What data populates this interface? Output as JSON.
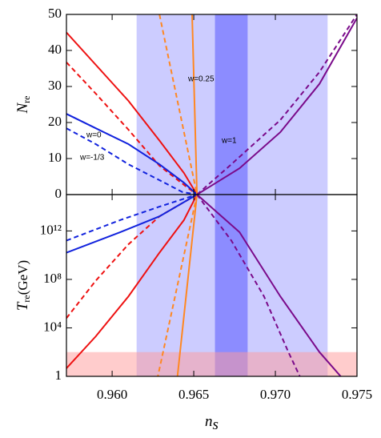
{
  "chart_data": [
    {
      "type": "line",
      "ylabel": [
        "N",
        "re"
      ],
      "xlim": [
        0.9572,
        0.975
      ],
      "xticks": [
        0.96,
        0.965,
        0.97,
        0.975
      ],
      "ylim": [
        0,
        50
      ],
      "yticks": [
        0,
        10,
        20,
        30,
        40,
        50
      ],
      "bands": [
        {
          "x": [
            0.9615,
            0.9732
          ],
          "color": "#ccccff"
        },
        {
          "x": [
            0.9663,
            0.9683
          ],
          "color": "#8c8cff"
        }
      ],
      "annotations": [
        "w=0",
        "w=-1/3",
        "w=0.25",
        "w=1"
      ],
      "series": [
        {
          "color": "#ee1111",
          "dash": false,
          "x": [
            0.9572,
            0.959,
            0.961,
            0.9629,
            0.9644,
            0.9652
          ],
          "values": [
            45,
            36,
            26,
            15,
            6,
            0
          ]
        },
        {
          "color": "#ee1111",
          "dash": true,
          "x": [
            0.9572,
            0.959,
            0.961,
            0.9629,
            0.9646,
            0.9652
          ],
          "values": [
            36.7,
            28,
            18,
            8,
            2,
            0
          ]
        },
        {
          "color": "#1122dd",
          "dash": false,
          "x": [
            0.9572,
            0.959,
            0.961,
            0.9629,
            0.9644,
            0.9652
          ],
          "values": [
            22.4,
            18.4,
            14,
            8.4,
            3.3,
            0
          ]
        },
        {
          "color": "#1122dd",
          "dash": true,
          "x": [
            0.9572,
            0.959,
            0.961,
            0.9629,
            0.9643,
            0.9652
          ],
          "values": [
            18.4,
            14,
            8.4,
            4,
            0.7,
            0
          ]
        },
        {
          "color": "#ff8822",
          "dash": false,
          "x": [
            0.9649,
            0.9652
          ],
          "values": [
            50,
            0
          ]
        },
        {
          "color": "#ff8822",
          "dash": true,
          "x": [
            0.9629,
            0.9652
          ],
          "values": [
            50,
            0
          ]
        },
        {
          "color": "#7a0a8a",
          "dash": false,
          "x": [
            0.9652,
            0.9678,
            0.9703,
            0.9727,
            0.975
          ],
          "values": [
            0,
            7.3,
            17.3,
            30.7,
            49
          ]
        },
        {
          "color": "#7a0a8a",
          "dash": true,
          "x": [
            0.9652,
            0.9673,
            0.9703,
            0.9727,
            0.975
          ],
          "values": [
            0,
            8.4,
            20.7,
            34,
            50
          ]
        }
      ]
    },
    {
      "type": "line",
      "ylabel": [
        "T",
        "re",
        "(GeV)"
      ],
      "xlabel": [
        "n",
        "s"
      ],
      "xlim": [
        0.9572,
        0.975
      ],
      "xticks": [
        {
          "value": 0.96,
          "label": "0.960"
        },
        {
          "value": 0.965,
          "label": "0.965"
        },
        {
          "value": 0.97,
          "label": "0.970"
        },
        {
          "value": 0.975,
          "label": "0.975"
        }
      ],
      "ylim": [
        1,
        1000000000000000.0
      ],
      "log_y": true,
      "yticks": [
        1,
        {
          "value": 10000,
          "label": "10⁴"
        },
        {
          "value": 100000000,
          "label": "10⁸"
        },
        {
          "value": 1000000000000,
          "label": "10¹²"
        }
      ],
      "bands": [
        {
          "x": [
            0.9615,
            0.9732
          ],
          "color": "#ccccff"
        },
        {
          "x": [
            0.9663,
            0.9683
          ],
          "color": "#8c8cff"
        }
      ],
      "hbands": [
        {
          "y": [
            1,
            100
          ],
          "color": "#ff9999"
        }
      ],
      "series": [
        {
          "color": "#ee1111",
          "dash": false,
          "x": [
            0.9572,
            0.959,
            0.961,
            0.9629,
            0.9644,
            0.9652
          ],
          "values": [
            4.6,
            2000,
            4000000,
            16000000000,
            7900000000000,
            1000000000000000.0
          ]
        },
        {
          "color": "#ee1111",
          "dash": true,
          "x": [
            0.9572,
            0.959,
            0.961,
            0.9629,
            0.9652
          ],
          "values": [
            63000,
            79000000,
            79000000000,
            16000000000000,
            1000000000000000.0
          ]
        },
        {
          "color": "#1122dd",
          "dash": false,
          "x": [
            0.9572,
            0.9605,
            0.9629,
            0.9652
          ],
          "values": [
            16000000000,
            790000000000,
            16000000000000,
            1000000000000000.0
          ]
        },
        {
          "color": "#1122dd",
          "dash": true,
          "x": [
            0.9572,
            0.9605,
            0.9629,
            0.9652
          ],
          "values": [
            160000000000,
            7900000000000,
            100000000000000,
            1000000000000000.0
          ]
        },
        {
          "color": "#ff8822",
          "dash": false,
          "x": [
            0.9652,
            0.964
          ],
          "values": [
            1000000000000000.0,
            1
          ]
        },
        {
          "color": "#ff8822",
          "dash": true,
          "x": [
            0.9652,
            0.9628
          ],
          "values": [
            1000000000000000.0,
            1
          ]
        },
        {
          "color": "#7a0a8a",
          "dash": false,
          "x": [
            0.9652,
            0.9678,
            0.9703,
            0.9727,
            0.974
          ],
          "values": [
            1000000000000000.0,
            790000000000,
            4000000,
            100,
            1
          ]
        },
        {
          "color": "#7a0a8a",
          "dash": true,
          "x": [
            0.9652,
            0.9673,
            0.9693,
            0.9708,
            0.9715
          ],
          "values": [
            1000000000000000.0,
            160000000000,
            4000000,
            100,
            1
          ]
        }
      ]
    }
  ]
}
